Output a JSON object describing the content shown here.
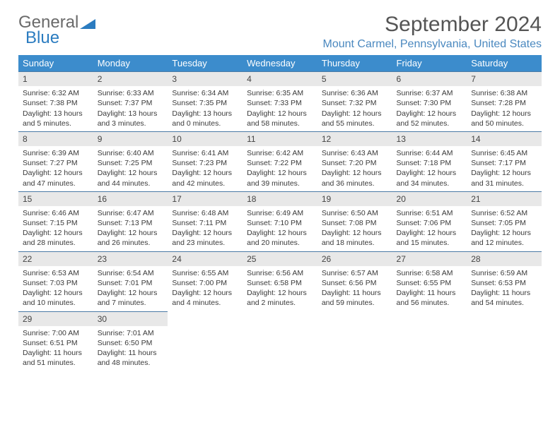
{
  "logo": {
    "general": "General",
    "blue": "Blue"
  },
  "title": "September 2024",
  "location": "Mount Carmel, Pennsylvania, United States",
  "colors": {
    "header_bg": "#3c8ccc",
    "header_text": "#ffffff",
    "daynum_bg": "#e8e8e8",
    "daynum_border": "#4a7aa6",
    "location_color": "#4a88bf",
    "logo_blue": "#2b7cc0",
    "logo_gray": "#6a6a6a"
  },
  "weekdays": [
    "Sunday",
    "Monday",
    "Tuesday",
    "Wednesday",
    "Thursday",
    "Friday",
    "Saturday"
  ],
  "weeks": [
    [
      {
        "n": "1",
        "sr": "Sunrise: 6:32 AM",
        "ss": "Sunset: 7:38 PM",
        "dl": "Daylight: 13 hours and 5 minutes."
      },
      {
        "n": "2",
        "sr": "Sunrise: 6:33 AM",
        "ss": "Sunset: 7:37 PM",
        "dl": "Daylight: 13 hours and 3 minutes."
      },
      {
        "n": "3",
        "sr": "Sunrise: 6:34 AM",
        "ss": "Sunset: 7:35 PM",
        "dl": "Daylight: 13 hours and 0 minutes."
      },
      {
        "n": "4",
        "sr": "Sunrise: 6:35 AM",
        "ss": "Sunset: 7:33 PM",
        "dl": "Daylight: 12 hours and 58 minutes."
      },
      {
        "n": "5",
        "sr": "Sunrise: 6:36 AM",
        "ss": "Sunset: 7:32 PM",
        "dl": "Daylight: 12 hours and 55 minutes."
      },
      {
        "n": "6",
        "sr": "Sunrise: 6:37 AM",
        "ss": "Sunset: 7:30 PM",
        "dl": "Daylight: 12 hours and 52 minutes."
      },
      {
        "n": "7",
        "sr": "Sunrise: 6:38 AM",
        "ss": "Sunset: 7:28 PM",
        "dl": "Daylight: 12 hours and 50 minutes."
      }
    ],
    [
      {
        "n": "8",
        "sr": "Sunrise: 6:39 AM",
        "ss": "Sunset: 7:27 PM",
        "dl": "Daylight: 12 hours and 47 minutes."
      },
      {
        "n": "9",
        "sr": "Sunrise: 6:40 AM",
        "ss": "Sunset: 7:25 PM",
        "dl": "Daylight: 12 hours and 44 minutes."
      },
      {
        "n": "10",
        "sr": "Sunrise: 6:41 AM",
        "ss": "Sunset: 7:23 PM",
        "dl": "Daylight: 12 hours and 42 minutes."
      },
      {
        "n": "11",
        "sr": "Sunrise: 6:42 AM",
        "ss": "Sunset: 7:22 PM",
        "dl": "Daylight: 12 hours and 39 minutes."
      },
      {
        "n": "12",
        "sr": "Sunrise: 6:43 AM",
        "ss": "Sunset: 7:20 PM",
        "dl": "Daylight: 12 hours and 36 minutes."
      },
      {
        "n": "13",
        "sr": "Sunrise: 6:44 AM",
        "ss": "Sunset: 7:18 PM",
        "dl": "Daylight: 12 hours and 34 minutes."
      },
      {
        "n": "14",
        "sr": "Sunrise: 6:45 AM",
        "ss": "Sunset: 7:17 PM",
        "dl": "Daylight: 12 hours and 31 minutes."
      }
    ],
    [
      {
        "n": "15",
        "sr": "Sunrise: 6:46 AM",
        "ss": "Sunset: 7:15 PM",
        "dl": "Daylight: 12 hours and 28 minutes."
      },
      {
        "n": "16",
        "sr": "Sunrise: 6:47 AM",
        "ss": "Sunset: 7:13 PM",
        "dl": "Daylight: 12 hours and 26 minutes."
      },
      {
        "n": "17",
        "sr": "Sunrise: 6:48 AM",
        "ss": "Sunset: 7:11 PM",
        "dl": "Daylight: 12 hours and 23 minutes."
      },
      {
        "n": "18",
        "sr": "Sunrise: 6:49 AM",
        "ss": "Sunset: 7:10 PM",
        "dl": "Daylight: 12 hours and 20 minutes."
      },
      {
        "n": "19",
        "sr": "Sunrise: 6:50 AM",
        "ss": "Sunset: 7:08 PM",
        "dl": "Daylight: 12 hours and 18 minutes."
      },
      {
        "n": "20",
        "sr": "Sunrise: 6:51 AM",
        "ss": "Sunset: 7:06 PM",
        "dl": "Daylight: 12 hours and 15 minutes."
      },
      {
        "n": "21",
        "sr": "Sunrise: 6:52 AM",
        "ss": "Sunset: 7:05 PM",
        "dl": "Daylight: 12 hours and 12 minutes."
      }
    ],
    [
      {
        "n": "22",
        "sr": "Sunrise: 6:53 AM",
        "ss": "Sunset: 7:03 PM",
        "dl": "Daylight: 12 hours and 10 minutes."
      },
      {
        "n": "23",
        "sr": "Sunrise: 6:54 AM",
        "ss": "Sunset: 7:01 PM",
        "dl": "Daylight: 12 hours and 7 minutes."
      },
      {
        "n": "24",
        "sr": "Sunrise: 6:55 AM",
        "ss": "Sunset: 7:00 PM",
        "dl": "Daylight: 12 hours and 4 minutes."
      },
      {
        "n": "25",
        "sr": "Sunrise: 6:56 AM",
        "ss": "Sunset: 6:58 PM",
        "dl": "Daylight: 12 hours and 2 minutes."
      },
      {
        "n": "26",
        "sr": "Sunrise: 6:57 AM",
        "ss": "Sunset: 6:56 PM",
        "dl": "Daylight: 11 hours and 59 minutes."
      },
      {
        "n": "27",
        "sr": "Sunrise: 6:58 AM",
        "ss": "Sunset: 6:55 PM",
        "dl": "Daylight: 11 hours and 56 minutes."
      },
      {
        "n": "28",
        "sr": "Sunrise: 6:59 AM",
        "ss": "Sunset: 6:53 PM",
        "dl": "Daylight: 11 hours and 54 minutes."
      }
    ],
    [
      {
        "n": "29",
        "sr": "Sunrise: 7:00 AM",
        "ss": "Sunset: 6:51 PM",
        "dl": "Daylight: 11 hours and 51 minutes."
      },
      {
        "n": "30",
        "sr": "Sunrise: 7:01 AM",
        "ss": "Sunset: 6:50 PM",
        "dl": "Daylight: 11 hours and 48 minutes."
      },
      null,
      null,
      null,
      null,
      null
    ]
  ]
}
